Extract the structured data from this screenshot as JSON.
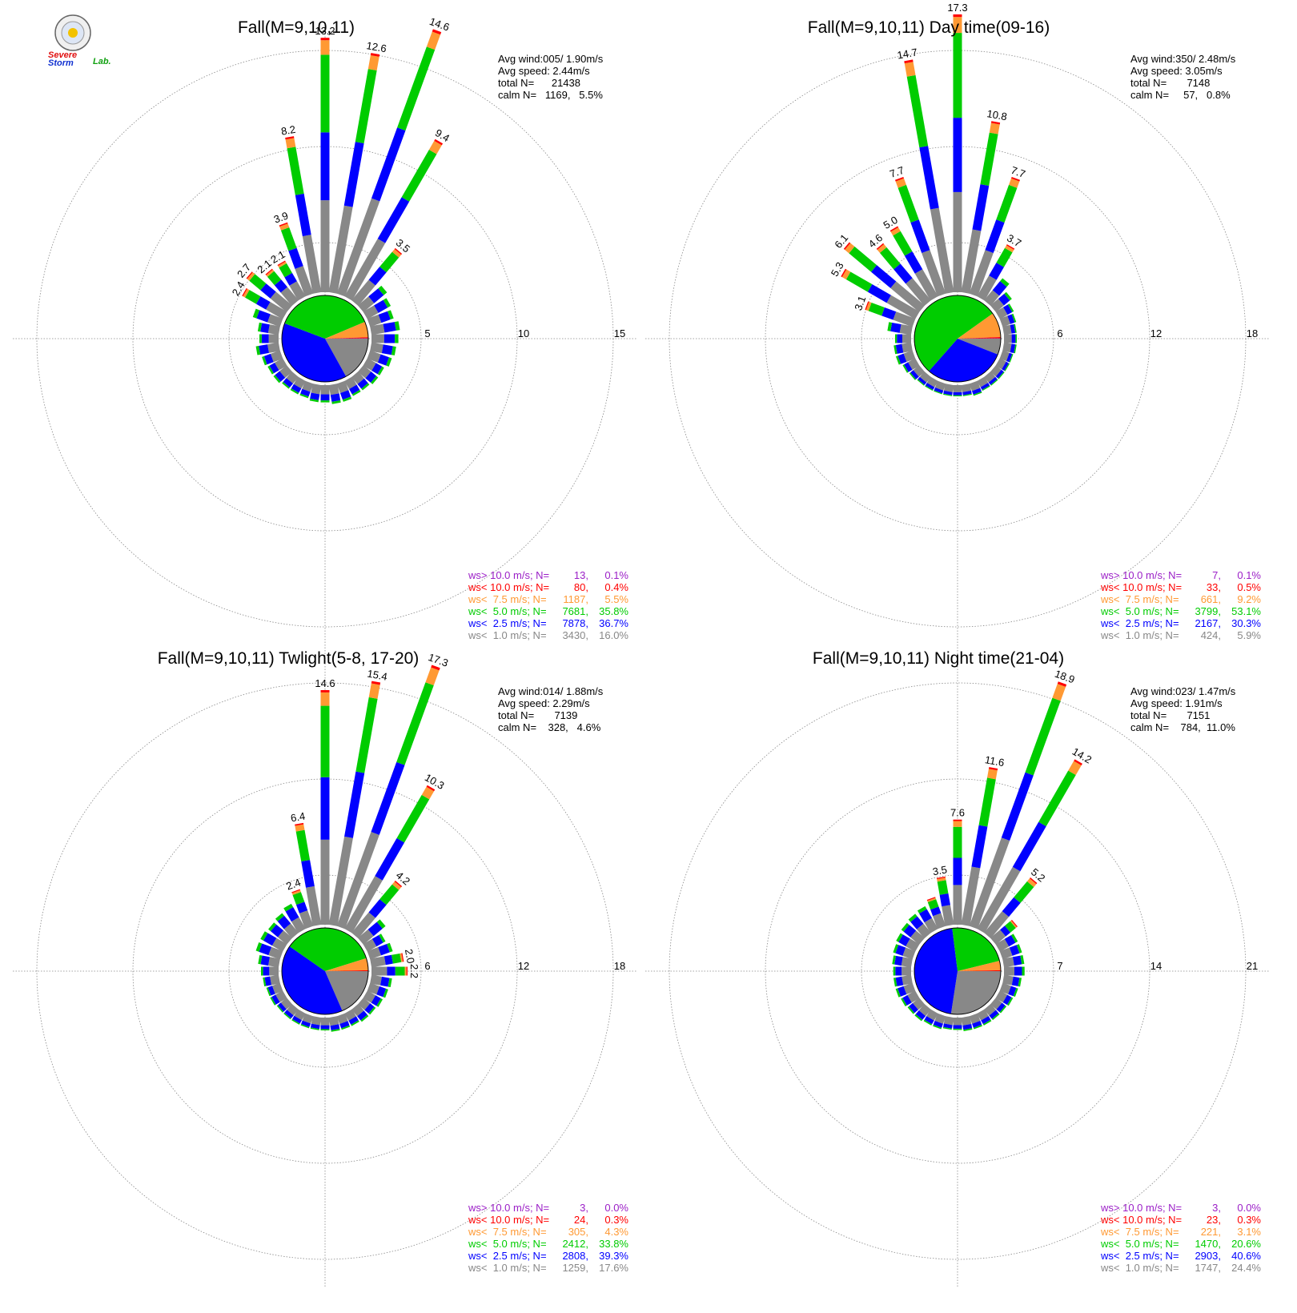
{
  "logo": {
    "severe": "Severe",
    "storm": "Storm",
    "lab": "Lab."
  },
  "legend_labels": [
    "ws> 10.0 m/s; N=",
    "ws< 10.0 m/s; N=",
    "ws<  7.5 m/s; N=",
    "ws<  5.0 m/s; N=",
    "ws<  2.5 m/s; N=",
    "ws<  1.0 m/s; N="
  ],
  "colors": {
    "gt10": "#9b1fc7",
    "lt10": "#ff0000",
    "lt7_5": "#ff9933",
    "lt5": "#00cc00",
    "lt2_5": "#0000ff",
    "lt1": "#888888",
    "axis": "#888888"
  },
  "chart_data": [
    {
      "type": "windrose",
      "title": "Fall(M=9,10,11)",
      "ring_ticks": [
        "5",
        "10",
        "15"
      ],
      "rmax": 15,
      "stats": [
        "Avg wind:005/ 1.90m/s",
        "Avg speed: 2.44m/s",
        "total N=      21438",
        "calm N=   1169,   5.5%"
      ],
      "legend": [
        {
          "n": "13",
          "pct": "0.1%"
        },
        {
          "n": "80",
          "pct": "0.4%"
        },
        {
          "n": "1187",
          "pct": "5.5%"
        },
        {
          "n": "7681",
          "pct": "35.8%"
        },
        {
          "n": "7878",
          "pct": "36.7%"
        },
        {
          "n": "3430",
          "pct": "16.0%"
        }
      ],
      "pie": [
        16.0,
        36.7,
        35.8,
        5.5,
        0.4,
        0.1
      ],
      "bars": [
        {
          "dir": -70,
          "total": 1.5
        },
        {
          "dir": -60,
          "total": 2.4,
          "label": "2.4"
        },
        {
          "dir": -50,
          "total": 2.7,
          "label": "2.7"
        },
        {
          "dir": -40,
          "total": 2.1,
          "label": "2.1"
        },
        {
          "dir": -30,
          "total": 2.1,
          "label": "2.1"
        },
        {
          "dir": -20,
          "total": 3.9,
          "label": "3.9"
        },
        {
          "dir": -10,
          "total": 8.2,
          "label": "8.2"
        },
        {
          "dir": 0,
          "total": 13.2,
          "label": "13.2"
        },
        {
          "dir": 10,
          "total": 12.6,
          "label": "12.6"
        },
        {
          "dir": 20,
          "total": 14.6,
          "label": "14.6"
        },
        {
          "dir": 30,
          "total": 9.4,
          "label": "9.4"
        },
        {
          "dir": 40,
          "total": 3.5,
          "label": "3.5"
        },
        {
          "dir": 50,
          "total": 1.6
        },
        {
          "dir": 60,
          "total": 1.4
        },
        {
          "dir": 70,
          "total": 1.3
        },
        {
          "dir": 80,
          "total": 1.5
        },
        {
          "dir": 90,
          "total": 1.4
        },
        {
          "dir": 100,
          "total": 1.3
        },
        {
          "dir": 110,
          "total": 1.2
        },
        {
          "dir": 120,
          "total": 1.0
        },
        {
          "dir": 130,
          "total": 1.0
        },
        {
          "dir": 140,
          "total": 0.9
        },
        {
          "dir": 150,
          "total": 0.9
        },
        {
          "dir": 160,
          "total": 1.0
        },
        {
          "dir": 170,
          "total": 1.0
        },
        {
          "dir": 180,
          "total": 0.9
        },
        {
          "dir": 190,
          "total": 0.9
        },
        {
          "dir": 200,
          "total": 0.8
        },
        {
          "dir": 210,
          "total": 0.8
        },
        {
          "dir": 220,
          "total": 0.8
        },
        {
          "dir": 230,
          "total": 0.9
        },
        {
          "dir": 240,
          "total": 0.9
        },
        {
          "dir": 250,
          "total": 1.0
        },
        {
          "dir": 260,
          "total": 1.2
        },
        {
          "dir": 270,
          "total": 1.0
        },
        {
          "dir": 280,
          "total": 1.1
        }
      ]
    },
    {
      "type": "windrose",
      "title": "Fall(M=9,10,11) Day time(09-16)",
      "ring_ticks": [
        "6",
        "12",
        "18"
      ],
      "rmax": 18,
      "stats": [
        "Avg wind:350/ 2.48m/s",
        "Avg speed: 3.05m/s",
        "total N=       7148",
        "calm N=     57,   0.8%"
      ],
      "legend": [
        {
          "n": "7",
          "pct": "0.1%"
        },
        {
          "n": "33",
          "pct": "0.5%"
        },
        {
          "n": "661",
          "pct": "9.2%"
        },
        {
          "n": "3799",
          "pct": "53.1%"
        },
        {
          "n": "2167",
          "pct": "30.3%"
        },
        {
          "n": "424",
          "pct": "5.9%"
        }
      ],
      "pie": [
        5.9,
        30.3,
        53.1,
        9.2,
        0.5,
        0.1
      ],
      "bars": [
        {
          "dir": -80,
          "total": 1.5
        },
        {
          "dir": -70,
          "total": 3.1,
          "label": "3.1"
        },
        {
          "dir": -60,
          "total": 5.3,
          "label": "5.3"
        },
        {
          "dir": -50,
          "total": 6.1,
          "label": "6.1"
        },
        {
          "dir": -40,
          "total": 4.6,
          "label": "4.6"
        },
        {
          "dir": -30,
          "total": 5.0,
          "label": "5.0"
        },
        {
          "dir": -20,
          "total": 7.7,
          "label": "7.7"
        },
        {
          "dir": -10,
          "total": 14.7,
          "label": "14.7"
        },
        {
          "dir": 0,
          "total": 17.3,
          "label": "17.3"
        },
        {
          "dir": 10,
          "total": 10.8,
          "label": "10.8"
        },
        {
          "dir": 20,
          "total": 7.7,
          "label": "7.7"
        },
        {
          "dir": 30,
          "total": 3.7,
          "label": "3.7"
        },
        {
          "dir": 40,
          "total": 1.8
        },
        {
          "dir": 50,
          "total": 1.3
        },
        {
          "dir": 60,
          "total": 1.0
        },
        {
          "dir": 70,
          "total": 0.9
        },
        {
          "dir": 80,
          "total": 0.8
        },
        {
          "dir": 90,
          "total": 0.8
        },
        {
          "dir": 100,
          "total": 0.8
        },
        {
          "dir": 110,
          "total": 0.7
        },
        {
          "dir": 120,
          "total": 0.7
        },
        {
          "dir": 130,
          "total": 0.7
        },
        {
          "dir": 140,
          "total": 0.7
        },
        {
          "dir": 150,
          "total": 0.7
        },
        {
          "dir": 160,
          "total": 0.8
        },
        {
          "dir": 170,
          "total": 0.7
        },
        {
          "dir": 180,
          "total": 0.7
        },
        {
          "dir": 190,
          "total": 0.7
        },
        {
          "dir": 200,
          "total": 0.7
        },
        {
          "dir": 210,
          "total": 0.7
        },
        {
          "dir": 220,
          "total": 0.7
        },
        {
          "dir": 230,
          "total": 0.8
        },
        {
          "dir": 240,
          "total": 0.9
        },
        {
          "dir": 250,
          "total": 1.1
        },
        {
          "dir": 260,
          "total": 1.1
        },
        {
          "dir": 270,
          "total": 1.0
        }
      ]
    },
    {
      "type": "windrose",
      "title": "Fall(M=9,10,11) Twlight(5-8, 17-20)",
      "ring_ticks": [
        "6",
        "12",
        "18"
      ],
      "rmax": 18,
      "stats": [
        "Avg wind:014/ 1.88m/s",
        "Avg speed: 2.29m/s",
        "total N=       7139",
        "calm N=    328,   4.6%"
      ],
      "legend": [
        {
          "n": "3",
          "pct": "0.0%"
        },
        {
          "n": "24",
          "pct": "0.3%"
        },
        {
          "n": "305",
          "pct": "4.3%"
        },
        {
          "n": "2412",
          "pct": "33.8%"
        },
        {
          "n": "2808",
          "pct": "39.3%"
        },
        {
          "n": "1259",
          "pct": "17.6%"
        }
      ],
      "pie": [
        17.6,
        39.3,
        33.8,
        4.3,
        0.3,
        0.0
      ],
      "bars": [
        {
          "dir": -70,
          "total": 1.6
        },
        {
          "dir": -60,
          "total": 1.6
        },
        {
          "dir": -50,
          "total": 1.5
        },
        {
          "dir": -40,
          "total": 1.6
        },
        {
          "dir": -30,
          "total": 1.8
        },
        {
          "dir": -20,
          "total": 2.4,
          "label": "2.4"
        },
        {
          "dir": -10,
          "total": 6.4,
          "label": "6.4"
        },
        {
          "dir": 0,
          "total": 14.6,
          "label": "14.6"
        },
        {
          "dir": 10,
          "total": 15.4,
          "label": "15.4"
        },
        {
          "dir": 20,
          "total": 17.3,
          "label": "17.3"
        },
        {
          "dir": 30,
          "total": 10.3,
          "label": "10.3"
        },
        {
          "dir": 40,
          "total": 4.2,
          "label": "4.2"
        },
        {
          "dir": 50,
          "total": 1.8
        },
        {
          "dir": 60,
          "total": 1.3
        },
        {
          "dir": 70,
          "total": 1.5
        },
        {
          "dir": 80,
          "total": 2.0,
          "label": "2.0"
        },
        {
          "dir": 90,
          "total": 2.2,
          "label": "2.2"
        },
        {
          "dir": 100,
          "total": 1.3
        },
        {
          "dir": 110,
          "total": 1.2
        },
        {
          "dir": 120,
          "total": 1.1
        },
        {
          "dir": 130,
          "total": 1.0
        },
        {
          "dir": 140,
          "total": 1.0
        },
        {
          "dir": 150,
          "total": 0.9
        },
        {
          "dir": 160,
          "total": 0.9
        },
        {
          "dir": 170,
          "total": 0.9
        },
        {
          "dir": 180,
          "total": 0.8
        },
        {
          "dir": 190,
          "total": 0.8
        },
        {
          "dir": 200,
          "total": 0.8
        },
        {
          "dir": 210,
          "total": 0.8
        },
        {
          "dir": 220,
          "total": 0.8
        },
        {
          "dir": 230,
          "total": 0.8
        },
        {
          "dir": 240,
          "total": 0.9
        },
        {
          "dir": 250,
          "total": 0.9
        },
        {
          "dir": 260,
          "total": 1.0
        },
        {
          "dir": 270,
          "total": 1.1
        },
        {
          "dir": 280,
          "total": 1.3
        }
      ]
    },
    {
      "type": "windrose",
      "title": "Fall(M=9,10,11) Night time(21-04)",
      "ring_ticks": [
        "7",
        "14",
        "21"
      ],
      "rmax": 21,
      "stats": [
        "Avg wind:023/ 1.47m/s",
        "Avg speed: 1.91m/s",
        "total N=       7151",
        "calm N=    784,  11.0%"
      ],
      "legend": [
        {
          "n": "3",
          "pct": "0.0%"
        },
        {
          "n": "23",
          "pct": "0.3%"
        },
        {
          "n": "221",
          "pct": "3.1%"
        },
        {
          "n": "1470",
          "pct": "20.6%"
        },
        {
          "n": "2903",
          "pct": "40.6%"
        },
        {
          "n": "1747",
          "pct": "24.4%"
        }
      ],
      "pie": [
        24.4,
        40.6,
        20.6,
        3.1,
        0.3,
        0.0
      ],
      "bars": [
        {
          "dir": -60,
          "total": 1.6
        },
        {
          "dir": -50,
          "total": 1.7
        },
        {
          "dir": -40,
          "total": 1.8
        },
        {
          "dir": -30,
          "total": 1.9
        },
        {
          "dir": -20,
          "total": 2.2
        },
        {
          "dir": -10,
          "total": 3.5,
          "label": "3.5"
        },
        {
          "dir": 0,
          "total": 7.6,
          "label": "7.6"
        },
        {
          "dir": 10,
          "total": 11.6,
          "label": "11.6"
        },
        {
          "dir": 20,
          "total": 18.9,
          "label": "18.9"
        },
        {
          "dir": 30,
          "total": 14.2,
          "label": "14.2"
        },
        {
          "dir": 40,
          "total": 5.2,
          "label": "5.2"
        },
        {
          "dir": 50,
          "total": 2.0
        },
        {
          "dir": 60,
          "total": 1.5
        },
        {
          "dir": 70,
          "total": 1.5
        },
        {
          "dir": 80,
          "total": 1.5
        },
        {
          "dir": 90,
          "total": 1.5
        },
        {
          "dir": 100,
          "total": 1.3
        },
        {
          "dir": 110,
          "total": 1.2
        },
        {
          "dir": 120,
          "total": 1.1
        },
        {
          "dir": 130,
          "total": 1.0
        },
        {
          "dir": 140,
          "total": 1.0
        },
        {
          "dir": 150,
          "total": 1.0
        },
        {
          "dir": 160,
          "total": 1.0
        },
        {
          "dir": 170,
          "total": 1.0
        },
        {
          "dir": 180,
          "total": 0.9
        },
        {
          "dir": 190,
          "total": 0.9
        },
        {
          "dir": 200,
          "total": 1.0
        },
        {
          "dir": 210,
          "total": 1.0
        },
        {
          "dir": 220,
          "total": 1.1
        },
        {
          "dir": 230,
          "total": 1.1
        },
        {
          "dir": 240,
          "total": 1.2
        },
        {
          "dir": 250,
          "total": 1.3
        },
        {
          "dir": 260,
          "total": 1.3
        },
        {
          "dir": 270,
          "total": 1.3
        },
        {
          "dir": 280,
          "total": 1.4
        },
        {
          "dir": 290,
          "total": 1.5
        }
      ]
    }
  ]
}
